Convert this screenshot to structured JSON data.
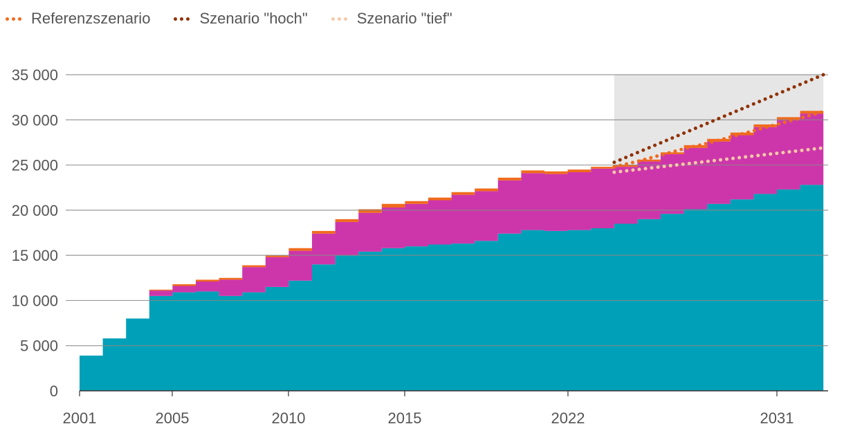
{
  "legend": {
    "items": [
      {
        "label": "Referenzszenario",
        "color": "#f06a1d"
      },
      {
        "label": "Szenario \"hoch\"",
        "color": "#8f3207"
      },
      {
        "label": "Szenario \"tief\"",
        "color": "#f8c9a8"
      }
    ]
  },
  "chart_data": {
    "type": "area",
    "title": "",
    "xlabel": "",
    "ylabel": "",
    "ylim": [
      0,
      35000
    ],
    "yticks": [
      0,
      5000,
      10000,
      15000,
      20000,
      25000,
      30000,
      35000
    ],
    "ytick_labels": [
      "0",
      "5 000",
      "10 000",
      "15 000",
      "20 000",
      "25 000",
      "30 000",
      "35 000"
    ],
    "xtick_labels": [
      "2001",
      "2005",
      "2010",
      "2015",
      "2022",
      "2031"
    ],
    "x": [
      2001,
      2002,
      2003,
      2004,
      2005,
      2006,
      2007,
      2008,
      2009,
      2010,
      2011,
      2012,
      2013,
      2014,
      2015,
      2016,
      2017,
      2018,
      2019,
      2020,
      2021,
      2022,
      2023,
      2024,
      2025,
      2026,
      2027,
      2028,
      2029,
      2030,
      2031,
      2032
    ],
    "stacked_series": [
      {
        "color": "#00a1b8",
        "values": [
          3900,
          5800,
          8000,
          10500,
          10900,
          11000,
          10500,
          10900,
          11500,
          12200,
          14000,
          15000,
          15400,
          15800,
          16000,
          16200,
          16300,
          16600,
          17400,
          17800,
          17700,
          17800,
          18000,
          18500,
          19000,
          19600,
          20100,
          20700,
          21200,
          21800,
          22300,
          22800
        ]
      },
      {
        "color": "#cd36ab",
        "values": [
          0,
          0,
          0,
          600,
          700,
          1100,
          1800,
          2800,
          3300,
          3300,
          3400,
          3700,
          4300,
          4500,
          4700,
          4900,
          5400,
          5500,
          5900,
          6300,
          6300,
          6400,
          6600,
          6300,
          6400,
          6600,
          6800,
          6900,
          7100,
          7400,
          7700,
          7900
        ]
      },
      {
        "color": "#f06a1d",
        "values": [
          0,
          0,
          0,
          100,
          200,
          200,
          200,
          200,
          200,
          300,
          300,
          300,
          400,
          400,
          300,
          300,
          300,
          300,
          300,
          300,
          300,
          300,
          200,
          200,
          200,
          200,
          300,
          300,
          300,
          300,
          300,
          300
        ]
      }
    ],
    "scenarios": [
      {
        "name": "Referenzszenario",
        "color": "#f06a1d",
        "x": [
          2024,
          2025,
          2026,
          2027,
          2028,
          2029,
          2030,
          2031,
          2032,
          2033
        ],
        "values": [
          24800,
          25400,
          26100,
          26800,
          27400,
          28100,
          28800,
          29500,
          30200,
          30900
        ]
      },
      {
        "name": "Szenario \"hoch\"",
        "color": "#8f3207",
        "x": [
          2024,
          2033
        ],
        "values": [
          25300,
          35000
        ]
      },
      {
        "name": "Szenario \"tief\"",
        "color": "#f8c9a8",
        "x": [
          2024,
          2033
        ],
        "values": [
          24200,
          26900
        ]
      }
    ],
    "forecast_region": {
      "from": 2024,
      "to": 2033,
      "color": "#e6e6e6"
    },
    "grid": true,
    "legend_position": "top-left"
  }
}
